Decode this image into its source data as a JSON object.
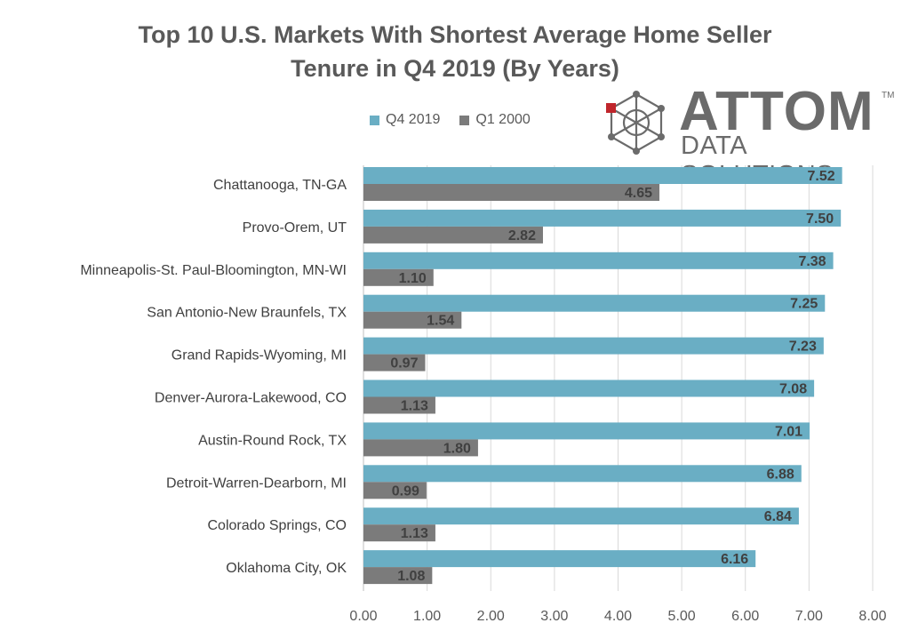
{
  "chart_data": {
    "type": "bar",
    "orientation": "horizontal",
    "title_line1": "Top 10 U.S. Markets With Shortest Average Home Seller",
    "title_line2": "Tenure in Q4 2019 (By Years)",
    "categories": [
      "Chattanooga, TN-GA",
      "Provo-Orem, UT",
      "Minneapolis-St. Paul-Bloomington, MN-WI",
      "San Antonio-New Braunfels, TX",
      "Grand Rapids-Wyoming, MI",
      "Denver-Aurora-Lakewood, CO",
      "Austin-Round Rock, TX",
      "Detroit-Warren-Dearborn, MI",
      "Colorado Springs, CO",
      "Oklahoma City, OK"
    ],
    "series": [
      {
        "name": "Q4 2019",
        "color": "#6aaec4",
        "values": [
          7.52,
          7.5,
          7.38,
          7.25,
          7.23,
          7.08,
          7.01,
          6.88,
          6.84,
          6.16
        ]
      },
      {
        "name": "Q1 2000",
        "color": "#7b7b7b",
        "values": [
          4.65,
          2.82,
          1.1,
          1.54,
          0.97,
          1.13,
          1.8,
          0.99,
          1.13,
          1.08
        ]
      }
    ],
    "xlim": [
      0,
      8
    ],
    "xticks": [
      "0.00",
      "1.00",
      "2.00",
      "3.00",
      "4.00",
      "5.00",
      "6.00",
      "7.00",
      "8.00"
    ],
    "grid": true,
    "legend_position": "top"
  },
  "logo": {
    "brand": "ATTOM",
    "subtitle": "DATA SOLUTIONS",
    "tm": "TM"
  }
}
